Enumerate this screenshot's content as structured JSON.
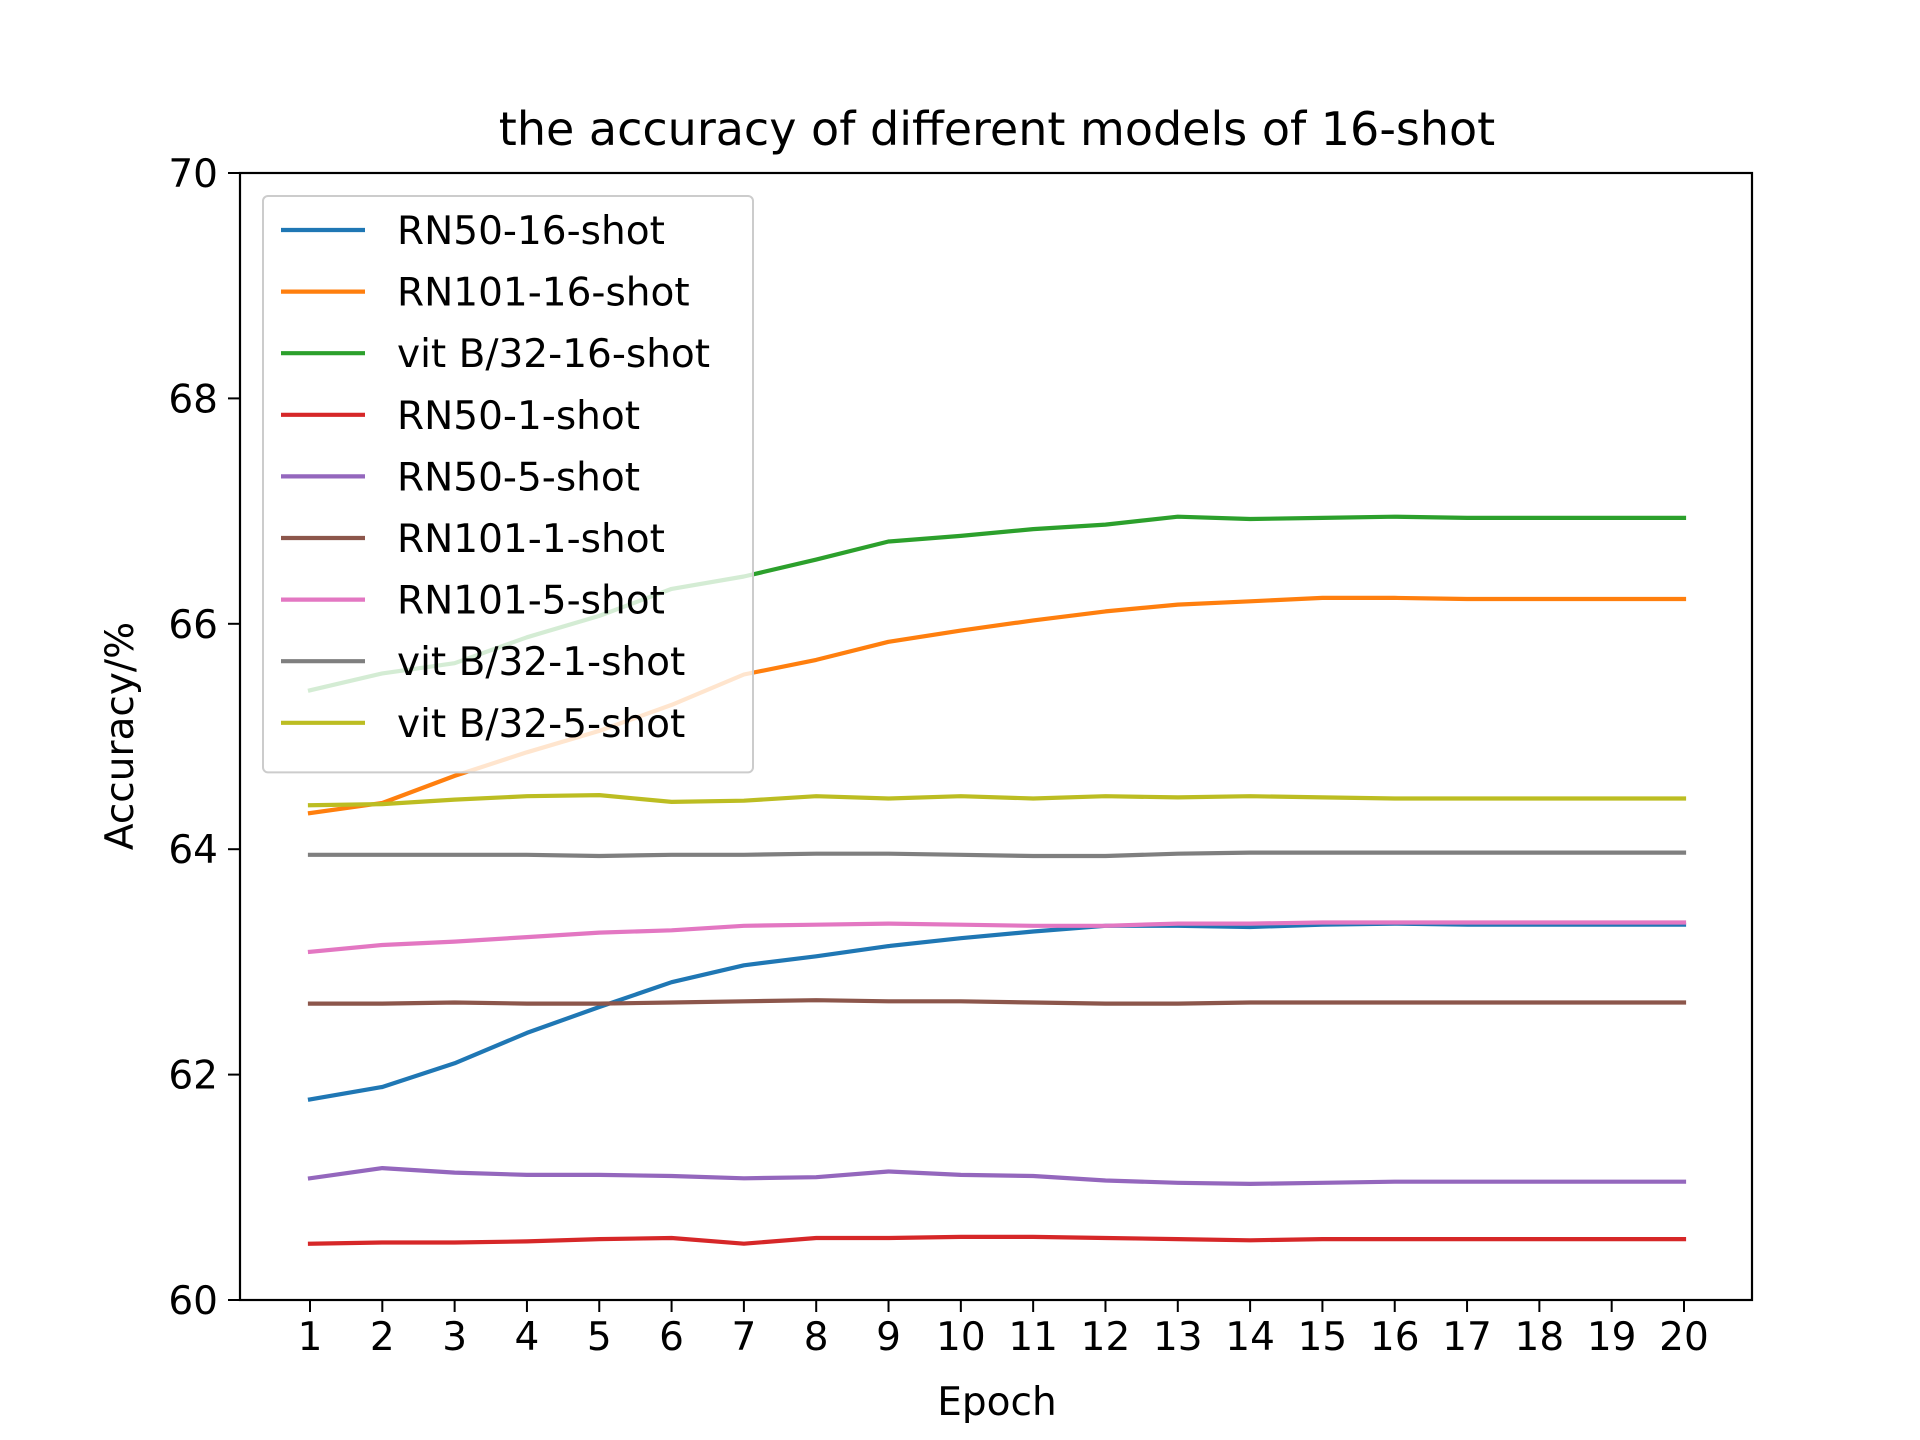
{
  "chart_data": {
    "type": "line",
    "title": "the accuracy of different models of 16-shot",
    "xlabel": "Epoch",
    "ylabel": "Accuracy/%",
    "ylim": [
      60,
      70
    ],
    "yticks": [
      60,
      62,
      64,
      66,
      68,
      70
    ],
    "x": [
      1,
      2,
      3,
      4,
      5,
      6,
      7,
      8,
      9,
      10,
      11,
      12,
      13,
      14,
      15,
      16,
      17,
      18,
      19,
      20
    ],
    "legend_position": "upper-left",
    "grid": false,
    "series": [
      {
        "name": "RN50-16-shot",
        "color": "#1f77b4",
        "values": [
          61.78,
          61.89,
          62.1,
          62.37,
          62.6,
          62.82,
          62.97,
          63.05,
          63.14,
          63.21,
          63.27,
          63.32,
          63.32,
          63.31,
          63.33,
          63.34,
          63.33,
          63.33,
          63.33,
          63.33
        ]
      },
      {
        "name": "RN101-16-shot",
        "color": "#ff7f0e",
        "values": [
          64.32,
          64.41,
          64.65,
          64.86,
          65.05,
          65.28,
          65.55,
          65.68,
          65.84,
          65.94,
          66.03,
          66.11,
          66.17,
          66.2,
          66.23,
          66.23,
          66.22,
          66.22,
          66.22,
          66.22
        ]
      },
      {
        "name": "vit B/32-16-shot",
        "color": "#2ca02c",
        "values": [
          65.41,
          65.56,
          65.65,
          65.88,
          66.07,
          66.31,
          66.42,
          66.57,
          66.73,
          66.78,
          66.84,
          66.88,
          66.95,
          66.93,
          66.94,
          66.95,
          66.94,
          66.94,
          66.94,
          66.94
        ]
      },
      {
        "name": "RN50-1-shot",
        "color": "#d62728",
        "values": [
          60.5,
          60.51,
          60.51,
          60.52,
          60.54,
          60.55,
          60.5,
          60.55,
          60.55,
          60.56,
          60.56,
          60.55,
          60.54,
          60.53,
          60.54,
          60.54,
          60.54,
          60.54,
          60.54,
          60.54
        ]
      },
      {
        "name": "RN50-5-shot",
        "color": "#9467bd",
        "values": [
          61.08,
          61.17,
          61.13,
          61.11,
          61.11,
          61.1,
          61.08,
          61.09,
          61.14,
          61.11,
          61.1,
          61.06,
          61.04,
          61.03,
          61.04,
          61.05,
          61.05,
          61.05,
          61.05,
          61.05
        ]
      },
      {
        "name": "RN101-1-shot",
        "color": "#8c564b",
        "values": [
          62.63,
          62.63,
          62.64,
          62.63,
          62.63,
          62.64,
          62.65,
          62.66,
          62.65,
          62.65,
          62.64,
          62.63,
          62.63,
          62.64,
          62.64,
          62.64,
          62.64,
          62.64,
          62.64,
          62.64
        ]
      },
      {
        "name": "RN101-5-shot",
        "color": "#e377c2",
        "values": [
          63.09,
          63.15,
          63.18,
          63.22,
          63.26,
          63.28,
          63.32,
          63.33,
          63.34,
          63.33,
          63.32,
          63.32,
          63.34,
          63.34,
          63.35,
          63.35,
          63.35,
          63.35,
          63.35,
          63.35
        ]
      },
      {
        "name": "vit B/32-1-shot",
        "color": "#7f7f7f",
        "values": [
          63.95,
          63.95,
          63.95,
          63.95,
          63.94,
          63.95,
          63.95,
          63.96,
          63.96,
          63.95,
          63.94,
          63.94,
          63.96,
          63.97,
          63.97,
          63.97,
          63.97,
          63.97,
          63.97,
          63.97
        ]
      },
      {
        "name": "vit B/32-5-shot",
        "color": "#bcbd22",
        "values": [
          64.39,
          64.4,
          64.44,
          64.47,
          64.48,
          64.42,
          64.43,
          64.47,
          64.45,
          64.47,
          64.45,
          64.47,
          64.46,
          64.47,
          64.46,
          64.45,
          64.45,
          64.45,
          64.45,
          64.45
        ]
      }
    ]
  }
}
